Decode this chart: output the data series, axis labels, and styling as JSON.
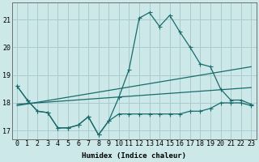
{
  "xlabel": "Humidex (Indice chaleur)",
  "xlim": [
    -0.5,
    23.5
  ],
  "ylim": [
    16.7,
    21.6
  ],
  "yticks": [
    17,
    18,
    19,
    20,
    21
  ],
  "xticks": [
    0,
    1,
    2,
    3,
    4,
    5,
    6,
    7,
    8,
    9,
    10,
    11,
    12,
    13,
    14,
    15,
    16,
    17,
    18,
    19,
    20,
    21,
    22,
    23
  ],
  "bg_color": "#cce8e8",
  "grid_color": "#aacccc",
  "line_color": "#1a6b6b",
  "line1": {
    "x": [
      0,
      1,
      2,
      3,
      4,
      5,
      6,
      7,
      8,
      9,
      10,
      11,
      12,
      13,
      14,
      15,
      16,
      17,
      18,
      19,
      20,
      21,
      22,
      23
    ],
    "y": [
      18.6,
      18.1,
      17.7,
      17.65,
      17.1,
      17.1,
      17.2,
      17.5,
      16.85,
      17.35,
      18.2,
      19.2,
      21.05,
      21.25,
      20.75,
      21.15,
      20.55,
      20.0,
      19.4,
      19.3,
      18.5,
      18.1,
      18.1,
      17.95
    ]
  },
  "line2": {
    "x": [
      0,
      1,
      2,
      3,
      4,
      5,
      6,
      7,
      8,
      9,
      10,
      11,
      12,
      13,
      14,
      15,
      16,
      17,
      18,
      19,
      20,
      21,
      22,
      23
    ],
    "y": [
      18.6,
      18.1,
      17.7,
      17.65,
      17.1,
      17.1,
      17.2,
      17.5,
      16.85,
      17.35,
      17.6,
      17.6,
      17.6,
      17.6,
      17.6,
      17.6,
      17.6,
      17.7,
      17.7,
      17.8,
      18.0,
      18.0,
      18.0,
      17.9
    ]
  },
  "line3": {
    "x": [
      0,
      23
    ],
    "y": [
      17.9,
      19.3
    ]
  },
  "line4": {
    "x": [
      0,
      23
    ],
    "y": [
      17.95,
      18.55
    ]
  }
}
